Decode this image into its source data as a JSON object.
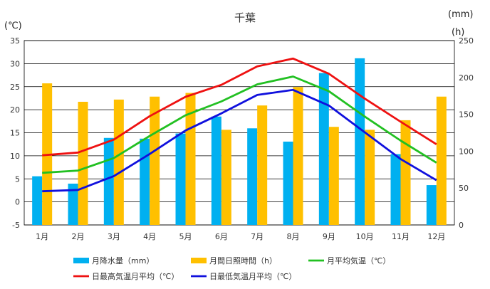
{
  "chart_data": {
    "type": "bar",
    "title": "千葉",
    "categories": [
      "1月",
      "2月",
      "3月",
      "4月",
      "5月",
      "6月",
      "7月",
      "8月",
      "9月",
      "10月",
      "11月",
      "12月"
    ],
    "left_axis": {
      "unit_label": "(℃)",
      "ylim": [
        -5,
        35
      ],
      "ticks": [
        "35",
        "30",
        "25",
        "20",
        "15",
        "10",
        "5",
        "0",
        "-5"
      ]
    },
    "right_axis": {
      "unit_label_1": "(mm)",
      "unit_label_2": "(h)",
      "ylim": [
        0,
        250
      ],
      "ticks": [
        "250",
        "200",
        "150",
        "100",
        "50",
        "0"
      ]
    },
    "grid": true,
    "legend_position": "bottom",
    "series": [
      {
        "name": "月降水量（mm）",
        "kind": "bar",
        "axis": "right",
        "color": "#00b0f0",
        "values": [
          66,
          56,
          118,
          117,
          124,
          147,
          131,
          113,
          206,
          226,
          96,
          54
        ]
      },
      {
        "name": "月間日照時間（h）",
        "kind": "bar",
        "axis": "right",
        "color": "#ffc000",
        "values": [
          192,
          167,
          170,
          174,
          179,
          129,
          162,
          187,
          133,
          129,
          142,
          174
        ]
      },
      {
        "name": "月平均気温（℃）",
        "kind": "line",
        "axis": "left",
        "color": "#22c022",
        "values": [
          6.3,
          6.8,
          9.5,
          14.3,
          18.8,
          21.8,
          25.5,
          27.2,
          24.0,
          18.5,
          13.3,
          8.5
        ]
      },
      {
        "name": "日最高気温月平均（℃）",
        "kind": "line",
        "axis": "left",
        "color": "#ee1111",
        "values": [
          10.1,
          10.7,
          13.5,
          18.6,
          22.8,
          25.4,
          29.4,
          31.1,
          27.8,
          22.4,
          17.4,
          12.5
        ]
      },
      {
        "name": "日最低気温月平均（℃）",
        "kind": "line",
        "axis": "left",
        "color": "#1010dd",
        "values": [
          2.3,
          2.6,
          5.6,
          10.4,
          15.5,
          19.2,
          23.2,
          24.3,
          20.9,
          15.1,
          9.3,
          4.7
        ]
      }
    ]
  }
}
